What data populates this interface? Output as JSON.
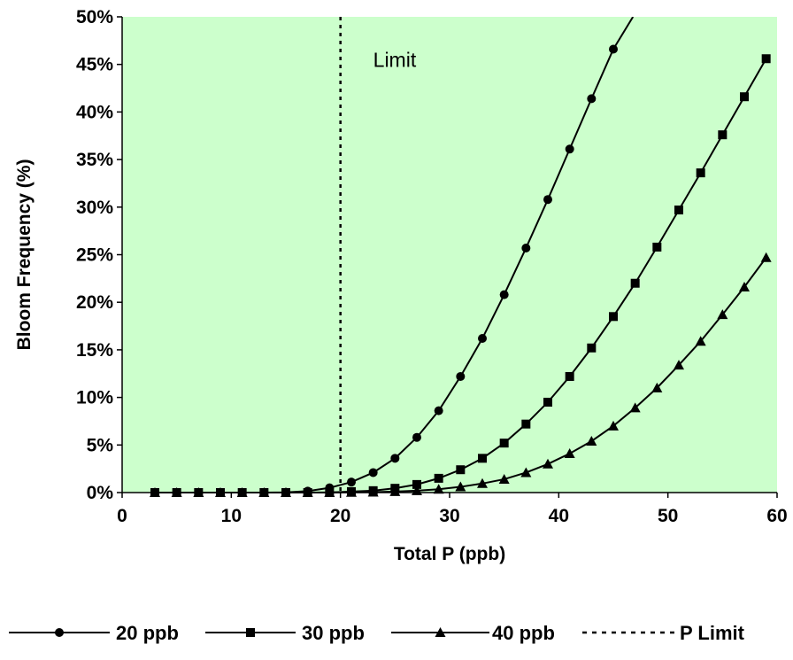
{
  "chart_data": {
    "type": "line",
    "xlabel": "Total P (ppb)",
    "ylabel": "Bloom Frequency (%)",
    "xlim": [
      0,
      60
    ],
    "ylim": [
      0,
      50
    ],
    "x_ticks": [
      0,
      10,
      20,
      30,
      40,
      50,
      60
    ],
    "y_ticks": [
      0,
      5,
      10,
      15,
      20,
      25,
      30,
      35,
      40,
      45,
      50
    ],
    "y_tick_suffix": "%",
    "grid": false,
    "plot_background": "#ccffcc",
    "legend_position": "bottom",
    "annotation": {
      "text": "Limit",
      "x": 23,
      "y": 45.5
    },
    "vertical_line": {
      "name": "P Limit",
      "x": 20,
      "style": "dotted"
    },
    "series": [
      {
        "name": "20 ppb",
        "marker": "circle",
        "x": [
          3,
          5,
          7,
          9,
          11,
          13,
          15,
          17,
          19,
          21,
          23,
          25,
          27,
          29,
          31,
          33,
          35,
          37,
          39,
          41,
          43,
          45,
          46.8
        ],
        "y": [
          0,
          0,
          0,
          0,
          0,
          0,
          0.02,
          0.15,
          0.5,
          1.1,
          2.1,
          3.6,
          5.8,
          8.6,
          12.2,
          16.2,
          20.8,
          25.7,
          30.8,
          36.1,
          41.4,
          46.6,
          50
        ],
        "marker_count": 22
      },
      {
        "name": "30 ppb",
        "marker": "square",
        "x": [
          3,
          5,
          7,
          9,
          11,
          13,
          15,
          17,
          19,
          21,
          23,
          25,
          27,
          29,
          31,
          33,
          35,
          37,
          39,
          41,
          43,
          45,
          47,
          49,
          51,
          53,
          55,
          57,
          59
        ],
        "y": [
          0,
          0,
          0,
          0,
          0,
          0,
          0,
          0,
          0.02,
          0.1,
          0.2,
          0.45,
          0.85,
          1.5,
          2.4,
          3.6,
          5.2,
          7.2,
          9.5,
          12.2,
          15.2,
          18.5,
          22.0,
          25.8,
          29.7,
          33.6,
          37.6,
          41.6,
          45.6
        ],
        "marker_count": 29
      },
      {
        "name": "40 ppb",
        "marker": "triangle",
        "x": [
          3,
          5,
          7,
          9,
          11,
          13,
          15,
          17,
          19,
          21,
          23,
          25,
          27,
          29,
          31,
          33,
          35,
          37,
          39,
          41,
          43,
          45,
          47,
          49,
          51,
          53,
          55,
          57,
          59
        ],
        "y": [
          0,
          0,
          0,
          0,
          0,
          0,
          0,
          0,
          0,
          0.02,
          0.05,
          0.1,
          0.2,
          0.35,
          0.6,
          0.95,
          1.4,
          2.1,
          3.0,
          4.1,
          5.4,
          7.0,
          8.9,
          11.0,
          13.4,
          15.9,
          18.7,
          21.6,
          24.7
        ],
        "marker_count": 29
      }
    ]
  }
}
